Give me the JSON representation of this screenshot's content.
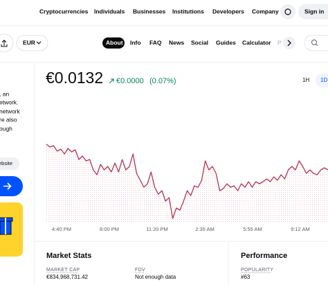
{
  "nav": {
    "links": [
      "Cryptocurrencies",
      "Individuals",
      "Businesses",
      "Institutions",
      "Developers",
      "Company"
    ],
    "sign_in": "Sign in"
  },
  "toolbar": {
    "currency": "EUR",
    "tabs": [
      "About",
      "Info",
      "FAQ",
      "News",
      "Social",
      "Guides",
      "Calculator",
      "P"
    ]
  },
  "sidebar": {
    "text_lines": [
      ", an",
      "etwork.",
      "network",
      "re also",
      "ough"
    ],
    "website": "ebsite"
  },
  "price": {
    "value": "€0.0132",
    "change": "€0.0000",
    "change_pct": "(0.07%)",
    "ranges": [
      "1H",
      "1D"
    ]
  },
  "price_chart": {
    "type": "line",
    "color": "#b5344f",
    "xtick_labels": [
      "4:40 PM",
      "8:00 PM",
      "11:20 PM",
      "2:35 AM",
      "5:55 AM",
      "9:12 AM"
    ],
    "ylim": [
      0.0128,
      0.0134
    ],
    "values": [
      0.01336,
      0.01334,
      0.01335,
      0.01331,
      0.013325,
      0.01329,
      0.01333,
      0.013305,
      0.01332,
      0.01325,
      0.013275,
      0.01324,
      0.01325,
      0.013175,
      0.01314,
      0.013215,
      0.013175,
      0.0132,
      0.01316,
      0.013225,
      0.01316,
      0.01325,
      0.013175,
      0.0132,
      0.01329,
      0.01315,
      0.0131,
      0.01305,
      0.013075,
      0.01316,
      0.01305,
      0.013,
      0.013025,
      0.01295,
      0.012975,
      0.012825,
      0.0129,
      0.012885,
      0.01295,
      0.013025,
      0.01299,
      0.01306,
      0.01305,
      0.0131,
      0.01324,
      0.013175,
      0.0132,
      0.01315,
      0.013025,
      0.01304,
      0.013075,
      0.01305,
      0.01306,
      0.013025,
      0.013075,
      0.01305,
      0.01309,
      0.01305,
      0.01309,
      0.013075,
      0.01309,
      0.01311,
      0.01309,
      0.013125,
      0.0131,
      0.01314,
      0.01311,
      0.013175,
      0.0132,
      0.013175,
      0.01324,
      0.0132,
      0.01315,
      0.013175,
      0.01315,
      0.01314,
      0.013175,
      0.01319,
      0.013175
    ]
  },
  "market_stats": {
    "title": "Market Stats",
    "items": [
      {
        "label": "MARKET CAP",
        "value": "€834,968,731.42"
      },
      {
        "label": "FDV",
        "value": "Not enough data"
      }
    ]
  },
  "performance": {
    "title": "Performance",
    "items": [
      {
        "label": "POPULARITY",
        "value": "#63"
      }
    ]
  }
}
